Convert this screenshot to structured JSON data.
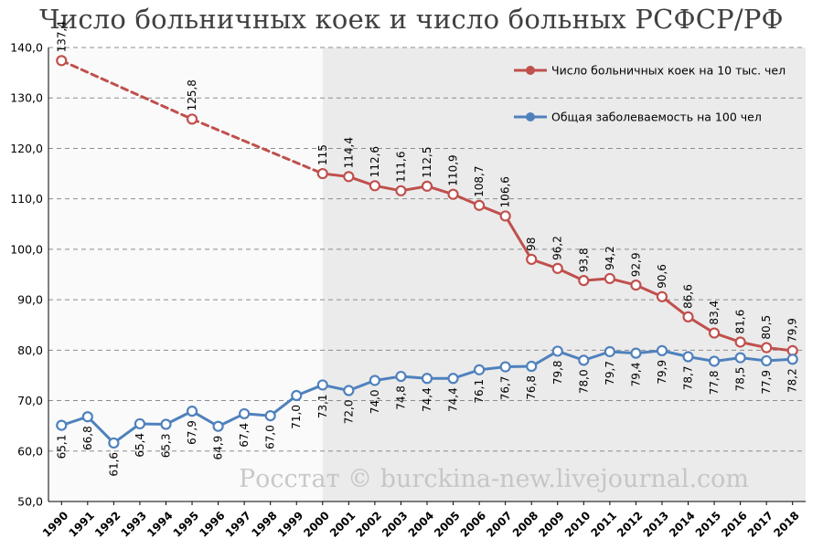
{
  "title": "Число больничных коек и число больных РСФСР/РФ",
  "watermark": "Росстат © burckina-new.livejournal.com",
  "chart_data": {
    "type": "line",
    "title": "Число больничных коек и число больных РСФСР/РФ",
    "xlabel": "",
    "ylabel": "",
    "ylim": [
      50,
      140
    ],
    "yticks": [
      "50,0",
      "60,0",
      "70,0",
      "80,0",
      "90,0",
      "100,0",
      "110,0",
      "120,0",
      "130,0",
      "140,0"
    ],
    "grid": true,
    "legend_position": "top-right",
    "shaded_region": {
      "from": "2000",
      "to": "2018"
    },
    "categories": [
      "1990",
      "1991",
      "1992",
      "1993",
      "1994",
      "1995",
      "1996",
      "1997",
      "1998",
      "1999",
      "2000",
      "2001",
      "2002",
      "2003",
      "2004",
      "2005",
      "2006",
      "2007",
      "2008",
      "2009",
      "2010",
      "2011",
      "2012",
      "2013",
      "2014",
      "2015",
      "2016",
      "2017",
      "2018"
    ],
    "series": [
      {
        "name": "Число больничных коек  на 10 тыс. чел",
        "color": "#c0504d",
        "values": [
          137.4,
          null,
          null,
          null,
          null,
          125.8,
          null,
          null,
          null,
          null,
          115,
          114.4,
          112.6,
          111.6,
          112.5,
          110.9,
          108.7,
          106.6,
          98,
          96.2,
          93.8,
          94.2,
          92.9,
          90.6,
          86.6,
          83.4,
          81.6,
          80.5,
          79.9
        ],
        "labels": [
          "137,4",
          "",
          "",
          "",
          "",
          "125,8",
          "",
          "",
          "",
          "",
          "115",
          "114,4",
          "112,6",
          "111,6",
          "112,5",
          "110,9",
          "108,7",
          "106,6",
          "98",
          "96,2",
          "93,8",
          "94,2",
          "92,9",
          "90,6",
          "86,6",
          "83,4",
          "81,6",
          "80,5",
          "79,9"
        ],
        "dashed_until": "2000"
      },
      {
        "name": "Общая заболеваемость на 100 чел",
        "color": "#4f81bd",
        "values": [
          65.1,
          66.8,
          61.6,
          65.4,
          65.3,
          67.9,
          64.9,
          67.4,
          67.0,
          71.0,
          73.1,
          72.0,
          74.0,
          74.8,
          74.4,
          74.4,
          76.1,
          76.7,
          76.8,
          79.8,
          78.0,
          79.7,
          79.4,
          79.9,
          78.7,
          77.8,
          78.5,
          77.9,
          78.2
        ],
        "labels": [
          "65,1",
          "66,8",
          "61,6",
          "65,4",
          "65,3",
          "67,9",
          "64,9",
          "67,4",
          "67,0",
          "71,0",
          "73,1",
          "72,0",
          "74,0",
          "74,8",
          "74,4",
          "74,4",
          "76,1",
          "76,7",
          "76,8",
          "79,8",
          "78,0",
          "79,7",
          "79,4",
          "79,9",
          "78,7",
          "77,8",
          "78,5",
          "77,9",
          "78,2"
        ]
      }
    ]
  }
}
